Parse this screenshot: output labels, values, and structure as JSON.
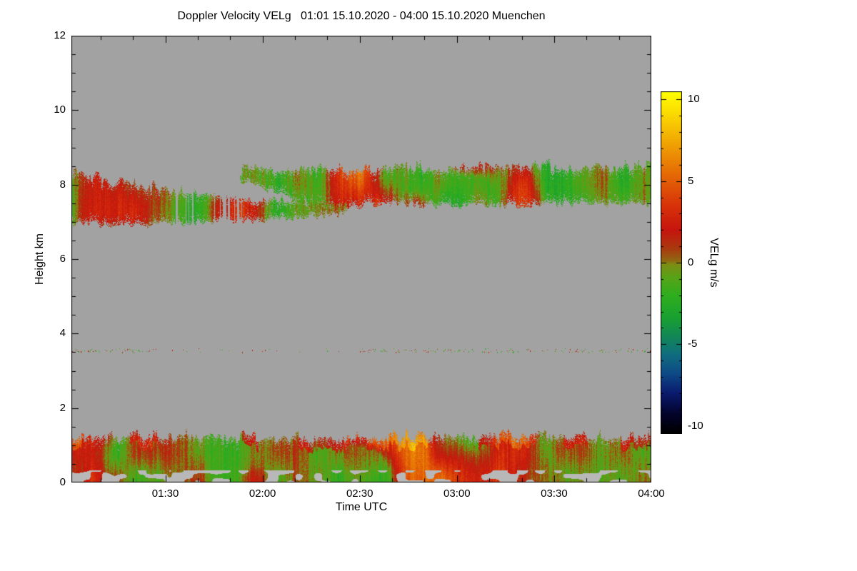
{
  "chart_data": {
    "type": "heatmap",
    "title_full": "Doppler Velocity VELg   01:01 15.10.2020 - 04:00 15.10.2020 Muenchen",
    "title": "Doppler Velocity VELg",
    "time_range_label": "01:01 15.10.2020 - 04:00 15.10.2020",
    "station": "Muenchen",
    "xlabel": "Time UTC",
    "ylabel": "Height km",
    "x_start_min": 61,
    "x_end_min": 240,
    "x_ticks": [
      {
        "min": 90,
        "label": "01:30"
      },
      {
        "min": 120,
        "label": "02:00"
      },
      {
        "min": 150,
        "label": "02:30"
      },
      {
        "min": 180,
        "label": "03:00"
      },
      {
        "min": 210,
        "label": "03:30"
      },
      {
        "min": 240,
        "label": "04:00"
      }
    ],
    "x_minor_step_min": 10,
    "ylim": [
      0,
      12
    ],
    "y_ticks": [
      0,
      2,
      4,
      6,
      8,
      10,
      12
    ],
    "y_minor_step": 0.5,
    "no_data_color": "#a2a2a2",
    "low_signal_color": "#b8b8b8",
    "colorbar": {
      "label": "VELg m/s",
      "units": "m/s",
      "range": [
        -10.5,
        10.5
      ],
      "ticks": [
        10,
        5,
        0,
        -5,
        -10
      ],
      "minor_step": 1,
      "stops": [
        [
          -10.5,
          "#000000"
        ],
        [
          -9.3,
          "#03032a"
        ],
        [
          -8.0,
          "#0a1a6e"
        ],
        [
          -6.8,
          "#0e4a86"
        ],
        [
          -5.6,
          "#0f6e7e"
        ],
        [
          -4.6,
          "#12855a"
        ],
        [
          -3.4,
          "#18a032"
        ],
        [
          -2.0,
          "#2fae1e"
        ],
        [
          -0.9,
          "#57a317"
        ],
        [
          -0.1,
          "#7e8d14"
        ],
        [
          0.1,
          "#8f6a12"
        ],
        [
          0.8,
          "#a83c10"
        ],
        [
          2.0,
          "#c6150e"
        ],
        [
          3.5,
          "#d8320a"
        ],
        [
          5.0,
          "#e25e06"
        ],
        [
          6.5,
          "#eb8a04"
        ],
        [
          8.0,
          "#f4b902"
        ],
        [
          9.3,
          "#fbdf01"
        ],
        [
          10.5,
          "#ffff00"
        ]
      ]
    },
    "layers": [
      {
        "kind": "band",
        "name": "cirrus-lower-band",
        "t_range": [
          61,
          146
        ],
        "bottom_pts": [
          [
            61,
            6.95
          ],
          [
            80,
            6.9
          ],
          [
            100,
            7.0
          ],
          [
            120,
            7.05
          ],
          [
            146,
            7.2
          ]
        ],
        "top_pts": [
          [
            61,
            8.25
          ],
          [
            80,
            7.95
          ],
          [
            100,
            7.78
          ],
          [
            120,
            7.6
          ],
          [
            146,
            7.6
          ]
        ],
        "mean_v": -1.3,
        "red_patch": 0.58
      },
      {
        "kind": "band",
        "name": "cirrus-upper-band",
        "t_range": [
          113,
          240
        ],
        "bottom_pts": [
          [
            113,
            8.15
          ],
          [
            122,
            7.85
          ],
          [
            132,
            7.55
          ],
          [
            142,
            7.4
          ],
          [
            160,
            7.5
          ],
          [
            180,
            7.4
          ],
          [
            200,
            7.45
          ],
          [
            220,
            7.5
          ],
          [
            240,
            7.45
          ]
        ],
        "top_pts": [
          [
            113,
            8.3
          ],
          [
            122,
            8.38
          ],
          [
            135,
            8.42
          ],
          [
            150,
            8.3
          ],
          [
            165,
            8.45
          ],
          [
            180,
            8.4
          ],
          [
            200,
            8.47
          ],
          [
            220,
            8.42
          ],
          [
            240,
            8.45
          ]
        ],
        "mean_v": -1.2,
        "red_patch": 0.58
      },
      {
        "kind": "band",
        "name": "boundary-layer",
        "t_range": [
          61,
          240
        ],
        "bottom_pts": [
          [
            61,
            0
          ]
        ],
        "top_pts": [
          [
            61,
            1.18
          ],
          [
            100,
            1.22
          ],
          [
            140,
            1.15
          ],
          [
            180,
            1.25
          ],
          [
            240,
            1.2
          ]
        ],
        "mean_v": -0.6,
        "red_patch": 0.6
      },
      {
        "kind": "speckle",
        "name": "speckle-line-3.5km",
        "t_range": [
          61,
          240
        ],
        "height": 3.55,
        "density": 0.22
      }
    ]
  }
}
